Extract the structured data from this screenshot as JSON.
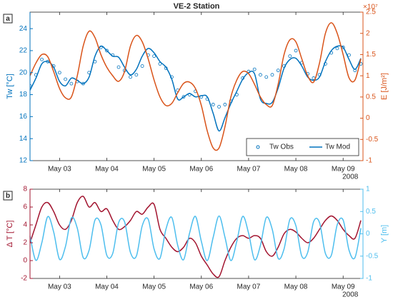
{
  "chart_data": [
    {
      "type": "line",
      "title": "VE-2 Station",
      "panel_label": "a",
      "year_label": "2008",
      "y_label": "Tw [°C]",
      "y2_label": "E [J/m²]",
      "y2_exponent": "×10⁷",
      "ycolor": "#0072bd",
      "y2color": "#d95319",
      "legend": "lower right",
      "x": [
        2.375,
        2.5,
        2.625,
        2.75,
        2.875,
        3.0,
        3.125,
        3.25,
        3.375,
        3.5,
        3.625,
        3.75,
        3.875,
        4.0,
        4.125,
        4.25,
        4.375,
        4.5,
        4.625,
        4.75,
        4.875,
        5.0,
        5.125,
        5.25,
        5.375,
        5.5,
        5.625,
        5.75,
        5.875,
        6.0,
        6.125,
        6.25,
        6.375,
        6.5,
        6.625,
        6.75,
        6.875,
        7.0,
        7.125,
        7.25,
        7.375,
        7.5,
        7.625,
        7.75,
        7.875,
        8.0,
        8.125,
        8.25,
        8.375,
        8.5,
        8.625,
        8.75,
        8.875,
        9.0,
        9.125,
        9.25,
        9.375
      ],
      "xlim": [
        2.375,
        9.42
      ],
      "xticks": [
        {
          "value": 3,
          "label": "May 03"
        },
        {
          "value": 4,
          "label": "May 04"
        },
        {
          "value": 5,
          "label": "May 05"
        },
        {
          "value": 6,
          "label": "May 06"
        },
        {
          "value": 7,
          "label": "May 07"
        },
        {
          "value": 8,
          "label": "May 08"
        },
        {
          "value": 9,
          "label": "May 09"
        }
      ],
      "ylim": [
        12,
        25.5
      ],
      "yticks": [
        12,
        14,
        16,
        18,
        20,
        22,
        24
      ],
      "y2lim": [
        -1,
        2.5
      ],
      "y2ticks": [
        -1,
        -0.5,
        0,
        0.5,
        1,
        1.5,
        2,
        2.5
      ],
      "series": [
        {
          "name": "Tw Obs",
          "color": "#0072bd",
          "mode": "markers",
          "values": [
            18.8,
            19.8,
            21.2,
            21.0,
            20.6,
            20.0,
            19.4,
            19.0,
            19.2,
            19.0,
            20.0,
            21.0,
            22.3,
            22.0,
            21.6,
            20.5,
            20.2,
            19.6,
            19.8,
            20.6,
            21.6,
            21.5,
            20.8,
            20.4,
            19.6,
            18.4,
            17.8,
            18.0,
            18.3,
            17.8,
            17.6,
            17.1,
            16.9,
            17.1,
            17.4,
            18.0,
            19.5,
            20.1,
            20.3,
            19.8,
            19.6,
            19.8,
            20.2,
            20.6,
            21.5,
            22.0,
            20.9,
            19.9,
            19.5,
            19.8,
            20.8,
            21.8,
            22.2,
            22.3,
            21.6,
            20.2,
            20.8
          ]
        },
        {
          "name": "Tw Mod",
          "color": "#0072bd",
          "mode": "lines",
          "values": [
            18.4,
            19.5,
            20.8,
            21.0,
            20.5,
            19.2,
            18.8,
            19.5,
            19.3,
            19.0,
            19.6,
            21.5,
            22.4,
            22.0,
            21.5,
            21.4,
            20.5,
            19.8,
            20.3,
            21.5,
            22.2,
            21.8,
            21.0,
            20.5,
            19.4,
            17.6,
            17.8,
            18.1,
            17.8,
            17.9,
            17.8,
            16.3,
            14.7,
            15.9,
            17.2,
            18.3,
            19.4,
            20.0,
            19.9,
            17.6,
            17.2,
            17.3,
            18.6,
            20.4,
            21.2,
            21.3,
            20.6,
            19.6,
            19.3,
            19.6,
            21.0,
            22.0,
            22.4,
            22.3,
            21.2,
            20.3,
            21.3
          ]
        },
        {
          "color": "#d95319",
          "mode": "lines",
          "axis": "y2",
          "values": [
            1.0,
            1.3,
            1.5,
            1.45,
            1.1,
            0.7,
            0.48,
            0.5,
            1.0,
            1.7,
            2.05,
            1.9,
            1.5,
            1.2,
            1.0,
            0.87,
            1.1,
            1.7,
            1.95,
            1.8,
            1.4,
            0.9,
            0.5,
            0.3,
            0.35,
            0.6,
            0.82,
            0.85,
            0.7,
            0.3,
            -0.3,
            -0.7,
            -0.7,
            -0.2,
            0.5,
            0.9,
            1.1,
            1.05,
            0.8,
            0.5,
            0.32,
            0.3,
            0.8,
            1.5,
            1.85,
            1.8,
            1.4,
            1.0,
            0.85,
            1.3,
            2.0,
            2.25,
            2.0,
            1.5,
            0.95,
            0.9,
            1.4
          ]
        }
      ]
    },
    {
      "type": "line",
      "panel_label": "b",
      "year_label": "2008",
      "y_label": "Δ T [°C]",
      "y2_label": "Y [m]",
      "ycolor": "#a2142f",
      "y2color": "#4dbeee",
      "x": [
        2.375,
        2.5,
        2.625,
        2.75,
        2.875,
        3.0,
        3.125,
        3.25,
        3.375,
        3.5,
        3.625,
        3.75,
        3.875,
        4.0,
        4.125,
        4.25,
        4.375,
        4.5,
        4.625,
        4.75,
        4.875,
        5.0,
        5.125,
        5.25,
        5.375,
        5.5,
        5.625,
        5.75,
        5.875,
        6.0,
        6.125,
        6.25,
        6.375,
        6.5,
        6.625,
        6.75,
        6.875,
        7.0,
        7.125,
        7.25,
        7.375,
        7.5,
        7.625,
        7.75,
        7.875,
        8.0,
        8.125,
        8.25,
        8.375,
        8.5,
        8.625,
        8.75,
        8.875,
        9.0,
        9.125,
        9.25,
        9.375
      ],
      "xlim": [
        2.375,
        9.42
      ],
      "xticks": [
        {
          "value": 3,
          "label": "May 03"
        },
        {
          "value": 4,
          "label": "May 04"
        },
        {
          "value": 5,
          "label": "May 05"
        },
        {
          "value": 6,
          "label": "May 06"
        },
        {
          "value": 7,
          "label": "May 07"
        },
        {
          "value": 8,
          "label": "May 08"
        },
        {
          "value": 9,
          "label": "May 09"
        }
      ],
      "ylim": [
        -2,
        8
      ],
      "yticks": [
        -2,
        0,
        2,
        4,
        6,
        8
      ],
      "y2lim": [
        -1,
        1
      ],
      "y2ticks": [
        -1,
        -0.5,
        0,
        0.5,
        1
      ],
      "series": [
        {
          "color": "#a2142f",
          "mode": "lines",
          "values": [
            2.0,
            4.0,
            6.0,
            6.5,
            5.5,
            4.0,
            3.5,
            4.5,
            6.5,
            7.2,
            6.0,
            6.5,
            5.5,
            5.8,
            4.5,
            3.5,
            3.8,
            4.5,
            5.5,
            5.2,
            6.0,
            6.3,
            3.5,
            2.5,
            1.5,
            1.0,
            1.5,
            2.5,
            2.0,
            0.5,
            -0.5,
            -1.5,
            -1.8,
            0.0,
            1.5,
            2.5,
            2.8,
            2.5,
            2.8,
            2.5,
            1.0,
            0.5,
            1.5,
            3.0,
            3.5,
            3.2,
            2.5,
            2.0,
            2.5,
            3.5,
            4.5,
            5.0,
            4.5,
            3.5,
            2.8,
            2.5,
            4.5
          ]
        },
        {
          "color": "#4dbeee",
          "mode": "lines",
          "axis": "y2",
          "values": [
            -0.047,
            -0.594,
            -0.199,
            0.385,
            0.043,
            -0.572,
            -0.285,
            0.355,
            0.127,
            -0.533,
            -0.368,
            0.309,
            0.204,
            -0.482,
            -0.44,
            0.252,
            0.271,
            -0.417,
            -0.5,
            0.183,
            0.327,
            -0.34,
            -0.549,
            0.1,
            0.367,
            -0.258,
            -0.58,
            0.012,
            0.39,
            -0.169,
            -0.6,
            -0.08,
            0.4,
            -0.078,
            -0.6,
            -0.169,
            0.39,
            0.012,
            -0.58,
            -0.258,
            0.367,
            0.1,
            -0.549,
            -0.34,
            0.327,
            0.183,
            -0.5,
            -0.417,
            0.271,
            0.252,
            -0.44,
            -0.482,
            0.204,
            0.309,
            -0.368,
            -0.533,
            0.127
          ]
        }
      ]
    }
  ]
}
